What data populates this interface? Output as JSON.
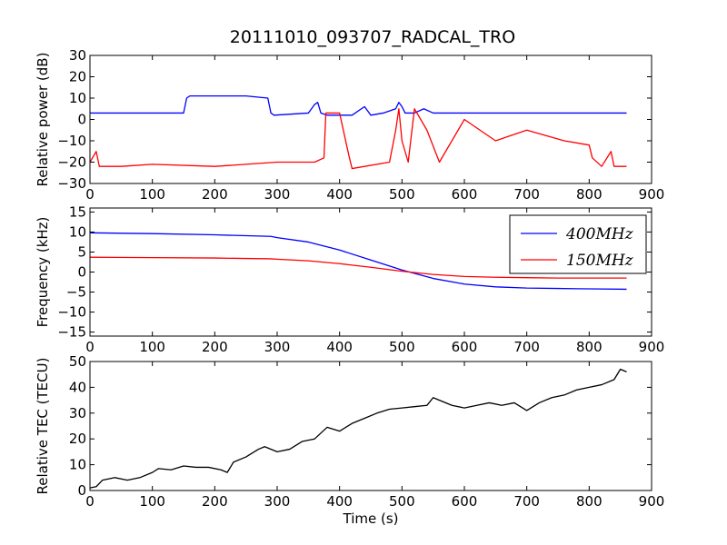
{
  "figure": {
    "title": "20111010_093707_RADCAL_TRO",
    "background": "#ffffff"
  },
  "chart_data": [
    {
      "type": "line",
      "xlabel": "",
      "ylabel": "Relative power (dB)",
      "xlim": [
        0,
        900
      ],
      "ylim": [
        -30,
        30
      ],
      "xticks": [
        "0",
        "100",
        "200",
        "300",
        "400",
        "500",
        "600",
        "700",
        "800",
        "900"
      ],
      "yticks": [
        "−30",
        "−20",
        "−10",
        "0",
        "10",
        "20",
        "30"
      ],
      "series": [
        {
          "color": "#0000ff",
          "x": [
            0,
            100,
            150,
            155,
            160,
            250,
            285,
            290,
            295,
            350,
            360,
            365,
            370,
            380,
            420,
            440,
            450,
            470,
            490,
            495,
            500,
            505,
            520,
            535,
            550,
            600,
            700,
            800,
            860
          ],
          "y": [
            3,
            3,
            3,
            10,
            11,
            11,
            10,
            3,
            2,
            3,
            7,
            8,
            3,
            2,
            2,
            6,
            2,
            3,
            5,
            8,
            6,
            3,
            3,
            5,
            3,
            3,
            3,
            3,
            3
          ]
        },
        {
          "color": "#ff0000",
          "x": [
            0,
            10,
            15,
            50,
            100,
            200,
            300,
            360,
            375,
            378,
            400,
            415,
            420,
            480,
            490,
            495,
            500,
            510,
            520,
            540,
            560,
            600,
            650,
            700,
            760,
            800,
            805,
            820,
            835,
            840,
            860
          ],
          "y": [
            -20,
            -15,
            -22,
            -22,
            -21,
            -22,
            -20,
            -20,
            -18,
            3,
            3,
            -17,
            -23,
            -20,
            -5,
            5,
            -10,
            -20,
            5,
            -5,
            -20,
            0,
            -10,
            -5,
            -10,
            -12,
            -18,
            -22,
            -15,
            -22,
            -22
          ]
        }
      ]
    },
    {
      "type": "line",
      "xlabel": "",
      "ylabel": "Frequency (kHz)",
      "xlim": [
        0,
        900
      ],
      "ylim": [
        -16,
        16
      ],
      "xticks": [
        "0",
        "100",
        "200",
        "300",
        "400",
        "500",
        "600",
        "700",
        "800",
        "900"
      ],
      "yticks": [
        "−15",
        "−10",
        "−5",
        "0",
        "5",
        "10",
        "15"
      ],
      "legend": {
        "position": "top-right",
        "entries": [
          "400MHz",
          "150MHz"
        ]
      },
      "series": [
        {
          "name": "400MHz",
          "color": "#0000ff",
          "x": [
            0,
            100,
            200,
            290,
            300,
            350,
            400,
            450,
            500,
            550,
            600,
            650,
            700,
            750,
            800,
            860
          ],
          "y": [
            9.8,
            9.6,
            9.3,
            8.9,
            8.6,
            7.5,
            5.5,
            3.0,
            0.5,
            -1.6,
            -3.0,
            -3.7,
            -4.0,
            -4.1,
            -4.2,
            -4.3
          ]
        },
        {
          "name": "150MHz",
          "color": "#ff0000",
          "x": [
            0,
            100,
            200,
            290,
            300,
            350,
            400,
            450,
            500,
            550,
            600,
            650,
            700,
            750,
            800,
            860
          ],
          "y": [
            3.7,
            3.6,
            3.5,
            3.3,
            3.2,
            2.8,
            2.1,
            1.2,
            0.2,
            -0.6,
            -1.1,
            -1.3,
            -1.4,
            -1.5,
            -1.5,
            -1.5
          ]
        }
      ]
    },
    {
      "type": "line",
      "xlabel": "Time (s)",
      "ylabel": "Relative TEC (TECU)",
      "xlim": [
        0,
        900
      ],
      "ylim": [
        0,
        50
      ],
      "xticks": [
        "0",
        "100",
        "200",
        "300",
        "400",
        "500",
        "600",
        "700",
        "800",
        "900"
      ],
      "yticks": [
        "0",
        "10",
        "20",
        "30",
        "40",
        "50"
      ],
      "series": [
        {
          "color": "#000000",
          "x": [
            0,
            10,
            20,
            40,
            60,
            80,
            100,
            110,
            130,
            150,
            170,
            190,
            210,
            220,
            230,
            250,
            270,
            280,
            300,
            320,
            340,
            360,
            380,
            400,
            420,
            440,
            460,
            480,
            500,
            520,
            540,
            550,
            560,
            580,
            600,
            620,
            640,
            660,
            680,
            700,
            720,
            740,
            760,
            780,
            800,
            820,
            840,
            850,
            860
          ],
          "y": [
            1,
            1.5,
            4,
            5,
            4,
            5,
            7,
            8.5,
            8,
            9.5,
            9,
            9,
            8,
            7,
            11,
            13,
            16,
            17,
            15,
            16,
            19,
            20,
            24.5,
            23,
            26,
            28,
            30,
            31.5,
            32,
            32.5,
            33,
            36,
            35,
            33,
            32,
            33,
            34,
            33,
            34,
            31,
            34,
            36,
            37,
            39,
            40,
            41,
            43,
            47,
            46
          ]
        }
      ]
    }
  ]
}
